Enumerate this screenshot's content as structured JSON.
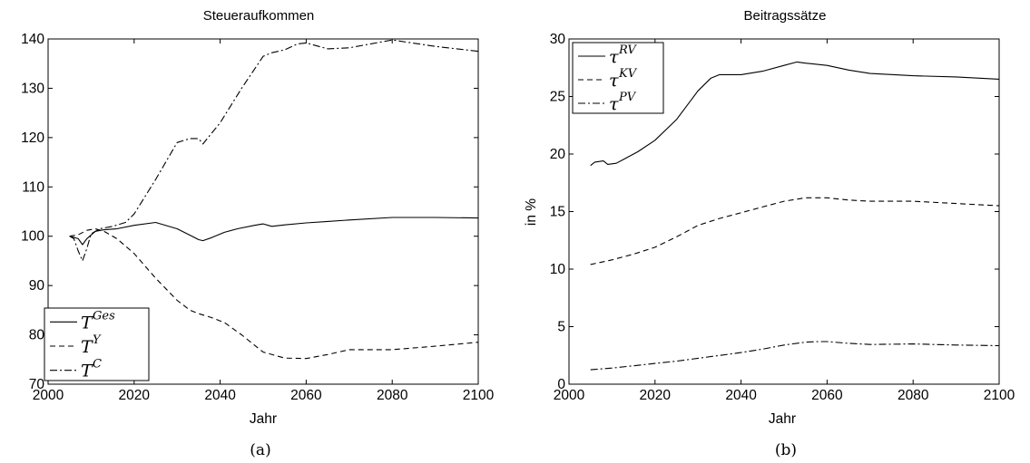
{
  "chart_data": [
    {
      "type": "line",
      "panel_caption": "(a)",
      "title": "Steueraufkommen",
      "xlabel": "Jahr",
      "ylabel": "",
      "xlim": [
        2000,
        2100
      ],
      "ylim": [
        70,
        140
      ],
      "xticks": [
        "2000",
        "2020",
        "2040",
        "2060",
        "2080",
        "2100"
      ],
      "yticks": [
        "70",
        "80",
        "90",
        "100",
        "110",
        "120",
        "130",
        "140"
      ],
      "legend_position": "bottom-left",
      "series": [
        {
          "name": "T^Ges",
          "legend_base": "T",
          "legend_sup": "Ges",
          "style": "solid",
          "color": "#000000",
          "x": [
            2005,
            2007,
            2008,
            2009,
            2011,
            2013,
            2016,
            2020,
            2025,
            2030,
            2033,
            2035,
            2036,
            2038,
            2041,
            2044,
            2048,
            2050,
            2052,
            2055,
            2060,
            2065,
            2070,
            2080,
            2090,
            2100
          ],
          "y": [
            100,
            99.5,
            98.3,
            99.5,
            101,
            101.3,
            101.5,
            102.2,
            102.8,
            101.5,
            100.2,
            99.3,
            99.1,
            99.7,
            100.8,
            101.5,
            102.2,
            102.5,
            102,
            102.3,
            102.7,
            103,
            103.3,
            103.8,
            103.8,
            103.7
          ]
        },
        {
          "name": "T^Y",
          "legend_base": "T",
          "legend_sup": "Y",
          "style": "dashed",
          "color": "#000000",
          "x": [
            2005,
            2007,
            2009,
            2011,
            2013,
            2016,
            2020,
            2025,
            2030,
            2033,
            2035,
            2038,
            2041,
            2045,
            2050,
            2055,
            2060,
            2065,
            2070,
            2080,
            2090,
            2100
          ],
          "y": [
            100,
            100.3,
            101.2,
            101.5,
            101,
            99.5,
            96.5,
            91.5,
            87,
            85,
            84.3,
            83.5,
            82.5,
            80,
            76.5,
            75.3,
            75.2,
            76,
            77,
            77,
            77.7,
            78.5
          ]
        },
        {
          "name": "T^C",
          "legend_base": "T",
          "legend_sup": "C",
          "style": "dashdot",
          "color": "#000000",
          "x": [
            2005,
            2006,
            2007,
            2008,
            2009,
            2010,
            2012,
            2015,
            2018,
            2020,
            2025,
            2030,
            2033,
            2035,
            2036,
            2040,
            2045,
            2050,
            2052,
            2055,
            2058,
            2060,
            2065,
            2070,
            2080,
            2090,
            2100
          ],
          "y": [
            100,
            99.5,
            97,
            95,
            97.5,
            100.5,
            101.5,
            102,
            102.8,
            104.5,
            111.5,
            119,
            119.8,
            119.8,
            118.7,
            123,
            130,
            136.5,
            137.2,
            137.8,
            139,
            139.2,
            138,
            138.2,
            139.8,
            138.5,
            137.5
          ]
        }
      ]
    },
    {
      "type": "line",
      "panel_caption": "(b)",
      "title": "Beitragssätze",
      "xlabel": "Jahr",
      "ylabel": "in %",
      "xlim": [
        2000,
        2100
      ],
      "ylim": [
        0,
        30
      ],
      "xticks": [
        "2000",
        "2020",
        "2040",
        "2060",
        "2080",
        "2100"
      ],
      "yticks": [
        "0",
        "5",
        "10",
        "15",
        "20",
        "25",
        "30"
      ],
      "legend_position": "top-left",
      "series": [
        {
          "name": "τ^RV",
          "legend_base": "τ",
          "legend_sup": "RV",
          "style": "solid",
          "color": "#000000",
          "x": [
            2005,
            2006,
            2008,
            2009,
            2011,
            2013,
            2016,
            2020,
            2025,
            2030,
            2033,
            2035,
            2040,
            2045,
            2050,
            2053,
            2055,
            2060,
            2065,
            2070,
            2080,
            2090,
            2100
          ],
          "y": [
            19,
            19.3,
            19.4,
            19.1,
            19.2,
            19.6,
            20.2,
            21.2,
            23,
            25.5,
            26.6,
            26.9,
            26.9,
            27.2,
            27.7,
            28,
            27.9,
            27.7,
            27.3,
            27,
            26.8,
            26.7,
            26.5
          ]
        },
        {
          "name": "τ^KV",
          "legend_base": "τ",
          "legend_sup": "KV",
          "style": "dashed",
          "color": "#000000",
          "x": [
            2005,
            2010,
            2015,
            2020,
            2025,
            2030,
            2035,
            2040,
            2045,
            2050,
            2055,
            2060,
            2065,
            2070,
            2080,
            2090,
            2100
          ],
          "y": [
            10.4,
            10.8,
            11.3,
            11.9,
            12.8,
            13.8,
            14.4,
            14.9,
            15.4,
            15.9,
            16.2,
            16.2,
            16.0,
            15.9,
            15.9,
            15.7,
            15.5
          ]
        },
        {
          "name": "τ^PV",
          "legend_base": "τ",
          "legend_sup": "PV",
          "style": "dashdot",
          "color": "#000000",
          "x": [
            2005,
            2010,
            2015,
            2020,
            2025,
            2030,
            2035,
            2040,
            2045,
            2050,
            2055,
            2058,
            2060,
            2065,
            2070,
            2080,
            2090,
            2100
          ],
          "y": [
            1.25,
            1.4,
            1.6,
            1.8,
            2.0,
            2.25,
            2.5,
            2.75,
            3.05,
            3.4,
            3.65,
            3.7,
            3.7,
            3.55,
            3.45,
            3.5,
            3.4,
            3.35
          ]
        }
      ]
    }
  ]
}
